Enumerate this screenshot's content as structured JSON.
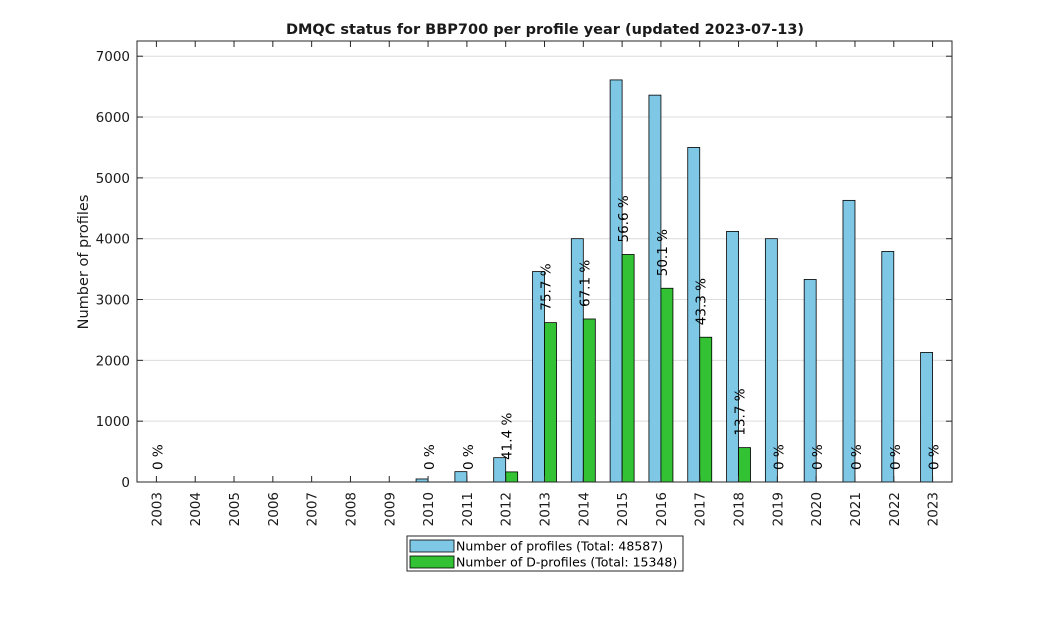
{
  "chart_data": {
    "type": "bar",
    "title": "DMQC status for BBP700 per profile year (updated 2023-07-13)",
    "xlabel": "",
    "ylabel": "Number of profiles",
    "ylim": [
      0,
      7250
    ],
    "yticks": [
      0,
      1000,
      2000,
      3000,
      4000,
      5000,
      6000,
      7000
    ],
    "yticks_labels": [
      "0",
      "1000",
      "2000",
      "3000",
      "4000",
      "5000",
      "6000",
      "7000"
    ],
    "grid": "horizontal",
    "legend_position": "bottom-center",
    "categories": [
      "2003",
      "2004",
      "2005",
      "2006",
      "2007",
      "2008",
      "2009",
      "2010",
      "2011",
      "2012",
      "2013",
      "2014",
      "2015",
      "2016",
      "2017",
      "2018",
      "2019",
      "2020",
      "2021",
      "2022",
      "2023"
    ],
    "series": [
      {
        "name": "Number of profiles (Total: 48587)",
        "color": "#7ec8e6",
        "values": [
          0,
          0,
          0,
          0,
          0,
          0,
          0,
          50,
          170,
          400,
          3460,
          4000,
          6610,
          6360,
          5500,
          4120,
          4000,
          3330,
          4630,
          3790,
          2130
        ]
      },
      {
        "name": "Number of D-profiles (Total: 15348)",
        "color": "#33c233",
        "values": [
          0,
          0,
          0,
          0,
          0,
          0,
          0,
          0,
          0,
          166,
          2620,
          2680,
          3740,
          3185,
          2380,
          565,
          0,
          0,
          0,
          0,
          0
        ]
      }
    ],
    "annotations": [
      {
        "category": "2003",
        "text": "0 %"
      },
      {
        "category": "2010",
        "text": "0 %"
      },
      {
        "category": "2011",
        "text": "0 %"
      },
      {
        "category": "2012",
        "text": "41.4 %"
      },
      {
        "category": "2013",
        "text": "75.7 %"
      },
      {
        "category": "2014",
        "text": "67.1 %"
      },
      {
        "category": "2015",
        "text": "56.6 %"
      },
      {
        "category": "2016",
        "text": "50.1 %"
      },
      {
        "category": "2017",
        "text": "43.3 %"
      },
      {
        "category": "2018",
        "text": "13.7 %"
      },
      {
        "category": "2019",
        "text": "0 %"
      },
      {
        "category": "2020",
        "text": "0 %"
      },
      {
        "category": "2021",
        "text": "0 %"
      },
      {
        "category": "2022",
        "text": "0 %"
      },
      {
        "category": "2023",
        "text": "0 %"
      }
    ]
  }
}
